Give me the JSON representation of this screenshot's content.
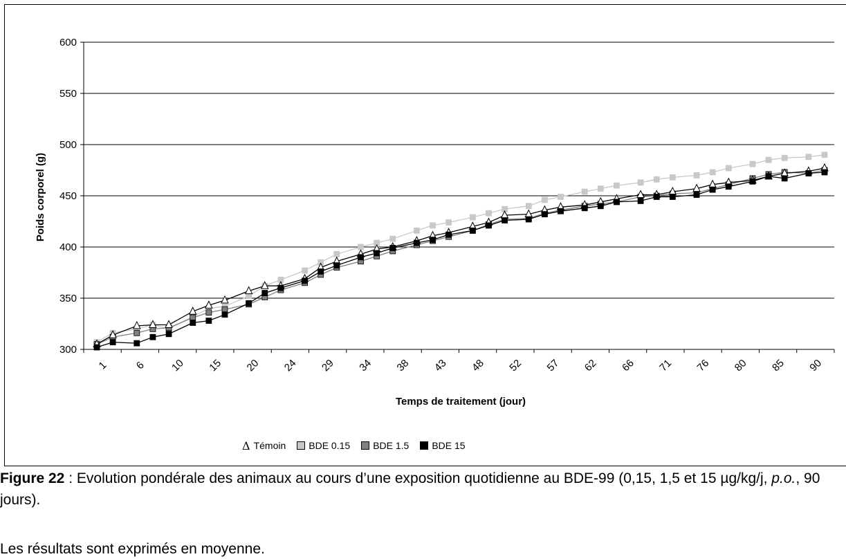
{
  "chart_data": {
    "type": "line",
    "title": "",
    "xlabel": "Temps de traitement (jour)",
    "ylabel": "Poids corporel (g)",
    "ylim": [
      300,
      600
    ],
    "yticks": [
      300,
      350,
      400,
      450,
      500,
      550,
      600
    ],
    "grid": true,
    "legend_position": "bottom",
    "x": [
      1,
      3,
      6,
      8,
      10,
      13,
      15,
      17,
      20,
      22,
      24,
      27,
      29,
      31,
      34,
      36,
      38,
      41,
      43,
      45,
      48,
      50,
      52,
      55,
      57,
      59,
      62,
      64,
      66,
      69,
      71,
      73,
      76,
      78,
      80,
      83,
      85,
      87,
      90,
      92
    ],
    "x_tick_labels": [
      "1",
      "6",
      "10",
      "15",
      "20",
      "24",
      "29",
      "34",
      "38",
      "43",
      "48",
      "52",
      "57",
      "62",
      "66",
      "71",
      "76",
      "80",
      "85",
      "90"
    ],
    "series": [
      {
        "name": "Témoin",
        "marker": "triangle",
        "color": "#ffffff",
        "values": [
          305,
          314,
          323,
          324,
          324,
          337,
          343,
          348,
          357,
          362,
          362,
          369,
          380,
          386,
          393,
          398,
          400,
          406,
          411,
          414,
          420,
          424,
          431,
          432,
          436,
          439,
          441,
          444,
          447,
          451,
          451,
          454,
          457,
          461,
          463,
          465,
          469,
          472,
          474,
          477
        ]
      },
      {
        "name": "BDE 0.15",
        "marker": "square",
        "color": "#c8c8c8",
        "values": [
          307,
          316,
          320,
          324,
          320,
          332,
          340,
          342,
          352,
          362,
          368,
          377,
          385,
          393,
          400,
          404,
          408,
          416,
          421,
          424,
          429,
          433,
          437,
          440,
          446,
          449,
          454,
          457,
          460,
          463,
          466,
          468,
          470,
          473,
          477,
          481,
          485,
          487,
          488,
          490
        ]
      },
      {
        "name": "BDE 1.5",
        "marker": "square",
        "color": "#808080",
        "values": [
          305,
          312,
          316,
          320,
          321,
          331,
          336,
          339,
          344,
          351,
          358,
          365,
          373,
          380,
          386,
          391,
          396,
          402,
          406,
          410,
          416,
          422,
          427,
          428,
          433,
          436,
          440,
          442,
          444,
          449,
          450,
          452,
          453,
          457,
          461,
          467,
          471,
          473,
          472,
          475
        ]
      },
      {
        "name": "BDE 15",
        "marker": "square",
        "color": "#000000",
        "values": [
          302,
          307,
          306,
          312,
          315,
          326,
          328,
          334,
          345,
          355,
          360,
          367,
          376,
          382,
          390,
          394,
          399,
          404,
          407,
          412,
          416,
          421,
          426,
          427,
          432,
          435,
          438,
          440,
          444,
          445,
          449,
          449,
          451,
          456,
          459,
          464,
          469,
          467,
          472,
          473
        ]
      }
    ]
  },
  "caption": {
    "figure_label": "Figure 22",
    "text": " : Evolution pondérale des animaux au cours d’une exposition quotidienne au BDE-99 (0,15, 1,5 et 15 µg/kg/j, ",
    "italic": "p.o.",
    "text_end": ", 90 jours)."
  },
  "note": "Les résultats sont exprimés en moyenne."
}
